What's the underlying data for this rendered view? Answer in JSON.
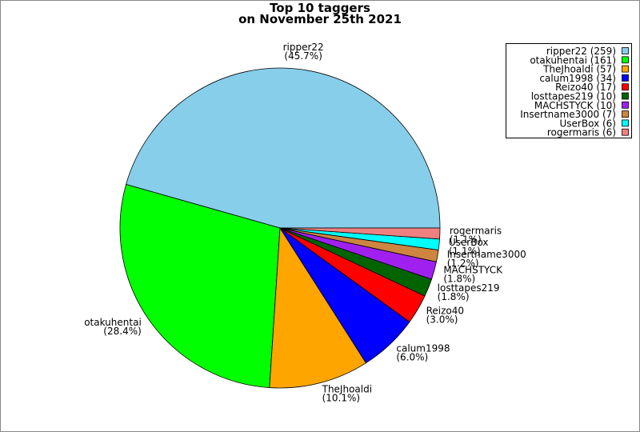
{
  "chart_data": {
    "type": "pie",
    "title": "Top 10 taggers",
    "subtitle": "on November 25th 2021",
    "categories": [
      "ripper22",
      "otakuhentai",
      "TheJhoaldi",
      "calum1998",
      "Reizo40",
      "losttapes219",
      "MACHSTYCK",
      "Insertname3000",
      "UserBox",
      "rogermaris"
    ],
    "values": [
      45.7,
      28.4,
      10.1,
      6.0,
      3.0,
      1.8,
      1.8,
      1.2,
      1.1,
      1.1
    ],
    "value_labels": [
      "(45.7%)",
      "(28.4%)",
      "(10.1%)",
      "(6.0%)",
      "(3.0%)",
      "(1.8%)",
      "(1.8%)",
      "(1.2%)",
      "(1.1%)",
      "(1.1%)"
    ],
    "colors": [
      "#87ceeb",
      "#00ff00",
      "#ffa500",
      "#0000ff",
      "#ff0000",
      "#006400",
      "#a020f0",
      "#cd853f",
      "#00ffff",
      "#f08080"
    ],
    "legend_labels": [
      "ripper22 (259)",
      "otakuhentai (161)",
      "TheJhoaldi (57)",
      "calum1998 (34)",
      "Reizo40 (17)",
      "losttapes219 (10)",
      "MACHSTYCK (10)",
      "Insertname3000 (7)",
      "UserBox (6)",
      "rogermaris (6)"
    ],
    "legend_position": "upper right"
  }
}
